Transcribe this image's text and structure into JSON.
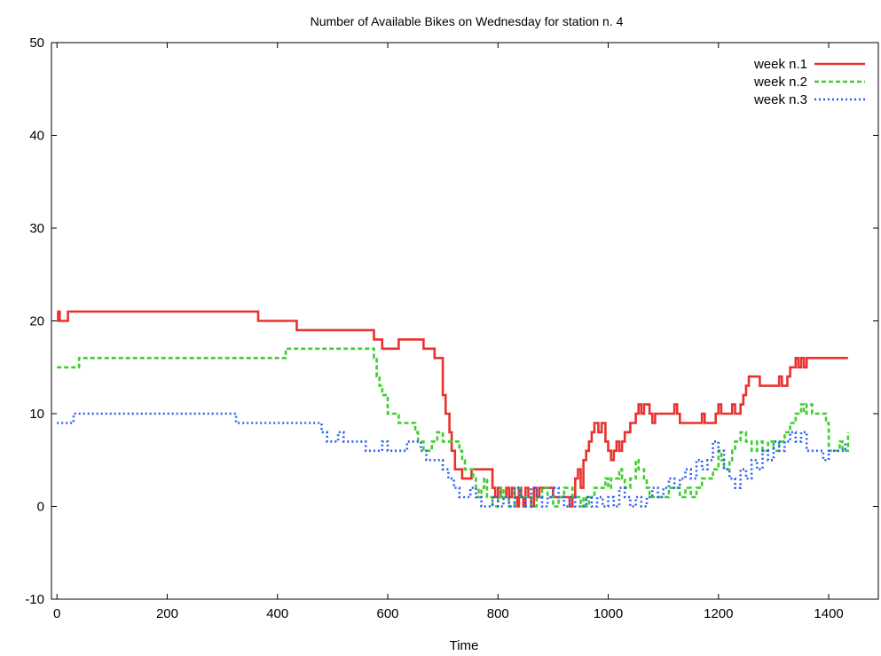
{
  "chart_data": {
    "type": "line",
    "title": "Number of Available Bikes on Wednesday for station n. 4",
    "xlabel": "Time",
    "ylabel": "",
    "xlim": [
      -10,
      1490
    ],
    "ylim": [
      -10,
      50
    ],
    "xticks": [
      0,
      200,
      400,
      600,
      800,
      1000,
      1200,
      1400
    ],
    "yticks": [
      -10,
      0,
      10,
      20,
      30,
      40,
      50
    ],
    "xtick_labels": [
      "0",
      "200",
      "400",
      "600",
      "800",
      "1000",
      "1200",
      "1400"
    ],
    "ytick_labels": [
      "-10",
      "0",
      "10",
      "20",
      "30",
      "40",
      "50"
    ],
    "grid": false,
    "legend_position": "top-right",
    "series": [
      {
        "name": "week n.1",
        "color": "#e8322f",
        "dash": "solid",
        "x": [
          0,
          2,
          5,
          10,
          20,
          365,
          368,
          435,
          438,
          575,
          580,
          590,
          595,
          620,
          625,
          665,
          670,
          685,
          690,
          700,
          705,
          712,
          716,
          722,
          728,
          735,
          740,
          752,
          756,
          790,
          795,
          800,
          805,
          815,
          820,
          825,
          830,
          835,
          838,
          842,
          846,
          850,
          855,
          860,
          865,
          870,
          875,
          900,
          905,
          930,
          935,
          940,
          945,
          950,
          955,
          960,
          965,
          970,
          975,
          982,
          988,
          995,
          1000,
          1005,
          1010,
          1015,
          1020,
          1025,
          1030,
          1040,
          1050,
          1055,
          1060,
          1065,
          1075,
          1080,
          1085,
          1095,
          1120,
          1125,
          1130,
          1135,
          1140,
          1170,
          1175,
          1195,
          1200,
          1205,
          1225,
          1230,
          1240,
          1245,
          1250,
          1255,
          1270,
          1275,
          1310,
          1315,
          1325,
          1330,
          1340,
          1345,
          1350,
          1355,
          1360,
          1365,
          1370,
          1380,
          1435
        ],
        "y": [
          20,
          21,
          20,
          20,
          21,
          20,
          20,
          19,
          19,
          18,
          18,
          17,
          17,
          18,
          18,
          17,
          17,
          16,
          16,
          12,
          10,
          8,
          6,
          4,
          4,
          3,
          3,
          4,
          4,
          2,
          1,
          2,
          1,
          2,
          1,
          2,
          1,
          0,
          2,
          1,
          0,
          2,
          1,
          0,
          2,
          1,
          2,
          1,
          1,
          0,
          1,
          3,
          4,
          2,
          5,
          6,
          7,
          8,
          9,
          8,
          9,
          7,
          6,
          5,
          6,
          7,
          6,
          7,
          8,
          9,
          10,
          11,
          10,
          11,
          10,
          9,
          10,
          10,
          11,
          10,
          9,
          9,
          9,
          10,
          9,
          10,
          11,
          10,
          11,
          10,
          11,
          12,
          13,
          14,
          14,
          13,
          14,
          13,
          14,
          15,
          16,
          15,
          16,
          15,
          16,
          16,
          16,
          16,
          16
        ],
        "step": true
      },
      {
        "name": "week n.2",
        "color": "#3ece2e",
        "dash": "dash",
        "x": [
          0,
          30,
          40,
          410,
          415,
          570,
          575,
          580,
          585,
          590,
          600,
          620,
          650,
          655,
          665,
          680,
          690,
          700,
          705,
          730,
          735,
          740,
          755,
          760,
          765,
          770,
          775,
          780,
          790,
          800,
          805,
          810,
          820,
          830,
          840,
          860,
          870,
          880,
          890,
          900,
          910,
          920,
          935,
          950,
          955,
          960,
          965,
          975,
          995,
          1000,
          1005,
          1020,
          1025,
          1030,
          1040,
          1050,
          1055,
          1065,
          1070,
          1075,
          1090,
          1100,
          1110,
          1130,
          1140,
          1150,
          1160,
          1170,
          1180,
          1190,
          1200,
          1205,
          1210,
          1220,
          1225,
          1230,
          1240,
          1250,
          1260,
          1270,
          1280,
          1290,
          1300,
          1310,
          1320,
          1330,
          1340,
          1350,
          1355,
          1360,
          1370,
          1380,
          1395,
          1400,
          1420,
          1425,
          1435
        ],
        "y": [
          15,
          15,
          16,
          16,
          17,
          17,
          16,
          14,
          13,
          12,
          10,
          9,
          8,
          7,
          6,
          7,
          8,
          7,
          7,
          6,
          5,
          4,
          3,
          2,
          1,
          2,
          3,
          1,
          0,
          1,
          2,
          1,
          0,
          2,
          1,
          0,
          1,
          2,
          1,
          0,
          1,
          2,
          1,
          0,
          1,
          0,
          1,
          2,
          3,
          2,
          3,
          4,
          3,
          2,
          3,
          5,
          4,
          3,
          2,
          1,
          1,
          1,
          2,
          1,
          2,
          1,
          2,
          3,
          3,
          4,
          6,
          5,
          4,
          5,
          6,
          7,
          8,
          7,
          6,
          7,
          6,
          7,
          6,
          7,
          8,
          9,
          10,
          11,
          10,
          11,
          10,
          10,
          9,
          6,
          7,
          6,
          8
        ],
        "step": true
      },
      {
        "name": "week n.3",
        "color": "#2a5ef0",
        "dash": "dot",
        "x": [
          0,
          20,
          30,
          320,
          325,
          480,
          490,
          510,
          520,
          560,
          570,
          590,
          600,
          625,
          635,
          660,
          670,
          690,
          700,
          710,
          720,
          730,
          750,
          760,
          770,
          790,
          800,
          810,
          820,
          830,
          840,
          850,
          860,
          870,
          880,
          890,
          900,
          910,
          920,
          930,
          940,
          960,
          970,
          980,
          990,
          1000,
          1010,
          1020,
          1030,
          1040,
          1050,
          1060,
          1070,
          1080,
          1090,
          1100,
          1110,
          1120,
          1130,
          1140,
          1150,
          1160,
          1170,
          1180,
          1190,
          1200,
          1210,
          1220,
          1230,
          1240,
          1250,
          1260,
          1270,
          1280,
          1290,
          1300,
          1310,
          1320,
          1330,
          1340,
          1350,
          1360,
          1380,
          1390,
          1400,
          1420,
          1430
        ],
        "y": [
          9,
          9,
          10,
          10,
          9,
          8,
          7,
          8,
          7,
          6,
          6,
          7,
          6,
          6,
          7,
          6,
          5,
          5,
          4,
          3,
          2,
          1,
          2,
          1,
          0,
          1,
          0,
          1,
          0,
          2,
          1,
          0,
          2,
          1,
          0,
          1,
          2,
          1,
          0,
          1,
          0,
          1,
          0,
          1,
          0,
          1,
          0,
          2,
          1,
          0,
          1,
          0,
          1,
          2,
          1,
          2,
          3,
          2,
          3,
          4,
          3,
          5,
          4,
          5,
          7,
          6,
          4,
          3,
          2,
          4,
          3,
          5,
          4,
          6,
          5,
          7,
          6,
          7,
          8,
          7,
          8,
          6,
          6,
          5,
          6,
          6,
          7
        ],
        "step": true
      }
    ]
  }
}
